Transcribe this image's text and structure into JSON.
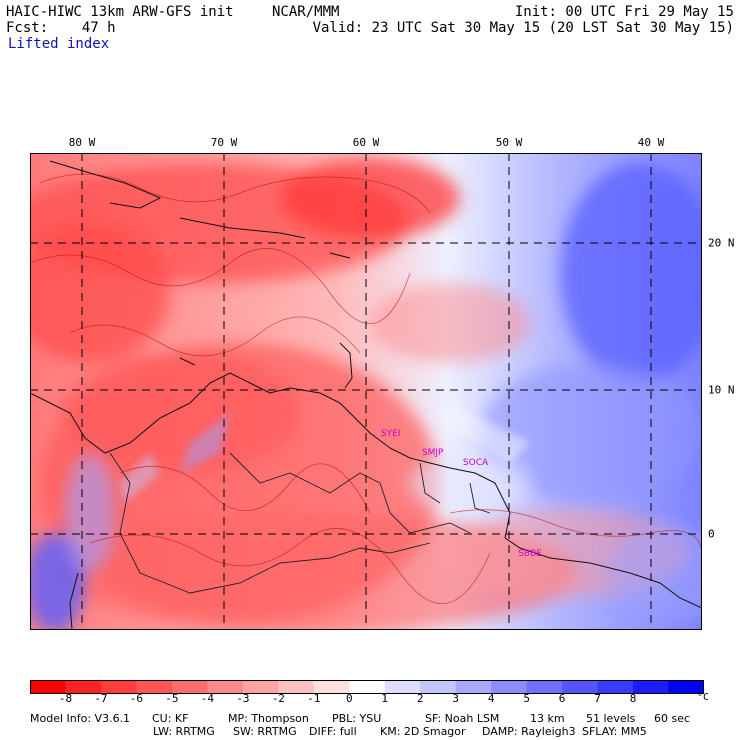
{
  "header": {
    "model": "HAIC-HIWC 13km ARW-GFS init",
    "org": "NCAR/MMM",
    "fcst": "Fcst:    47 h",
    "variable": "Lifted index",
    "init": "Init: 00 UTC Fri 29 May 15",
    "valid": "Valid: 23 UTC Sat 30 May 15 (20 LST Sat 30 May 15)"
  },
  "map": {
    "lon_labels": [
      "80 W",
      "70 W",
      "60 W",
      "50 W",
      "40 W"
    ],
    "lat_labels": [
      "20 N",
      "10 N",
      "0"
    ],
    "stations": [
      {
        "name": "SYEI",
        "lon": -58.2,
        "lat": 6.8
      },
      {
        "name": "SMJP",
        "lon": -55.3,
        "lat": 5.5
      },
      {
        "name": "SOCA",
        "lon": -52.4,
        "lat": 4.8
      },
      {
        "name": "SBBE",
        "lon": -48.5,
        "lat": -1.4
      }
    ],
    "bounds": {
      "lon_min": -83,
      "lon_max": -35.5,
      "lat_min": -6.5,
      "lat_max": 26
    }
  },
  "colorbar": {
    "ticks": [
      "-8",
      "-7",
      "-6",
      "-5",
      "-4",
      "-3",
      "-2",
      "-1",
      "0",
      "1",
      "2",
      "3",
      "4",
      "5",
      "6",
      "7",
      "8"
    ],
    "unit": "°C",
    "colors": [
      "#ff0000",
      "#ff2222",
      "#ff3d3d",
      "#ff5555",
      "#ff6e6e",
      "#ff8888",
      "#ffa3a3",
      "#ffc2c2",
      "#ffe0e0",
      "#ffffff",
      "#dedeff",
      "#c4c4ff",
      "#a8a8ff",
      "#8c8cff",
      "#7070ff",
      "#5555ff",
      "#3a3aff",
      "#1c1cff",
      "#0000ff"
    ]
  },
  "footer": {
    "line1": [
      "Model Info: V3.6.1",
      "CU: KF",
      "MP: Thompson",
      "PBL: YSU",
      "SF: Noah LSM",
      "13 km",
      "51 levels",
      "60 sec"
    ],
    "line2": [
      "LW: RRTMG",
      "SW: RRTMG",
      "DIFF: full",
      "KM: 2D Smagor",
      "DAMP: Rayleigh3",
      "SFLAY: MM5"
    ]
  }
}
